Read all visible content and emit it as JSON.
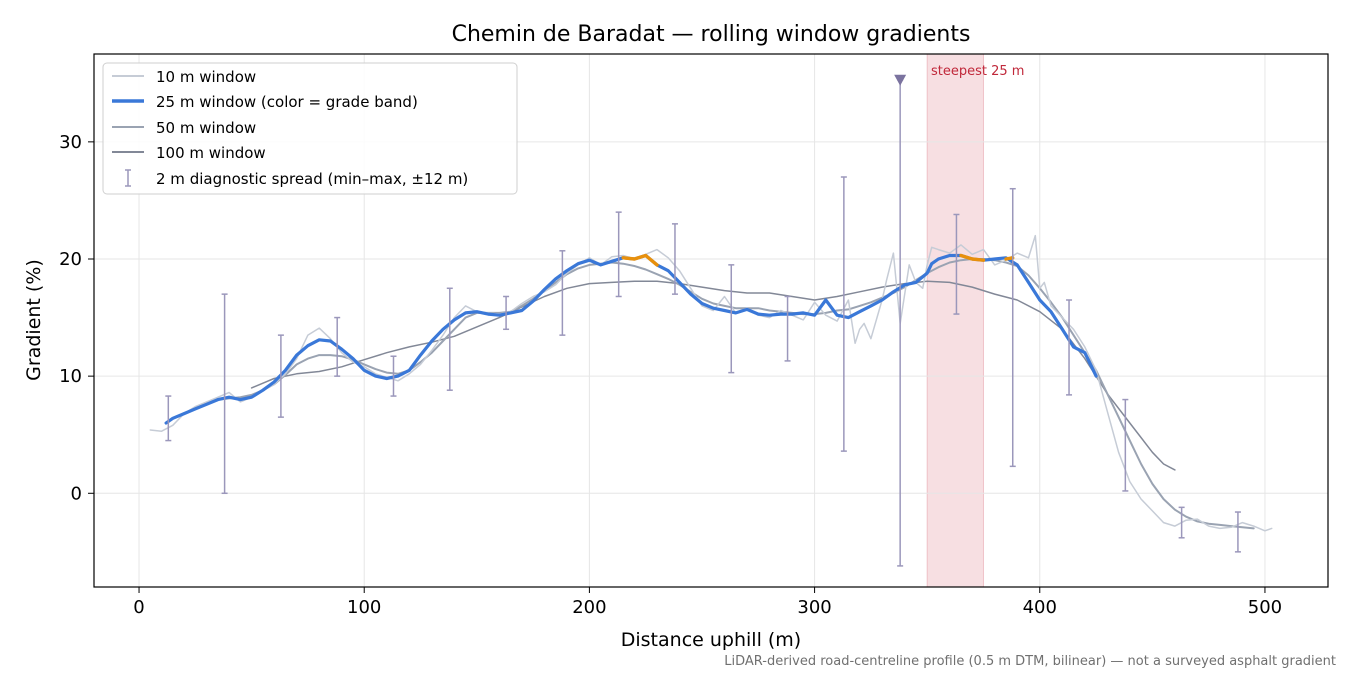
{
  "chart_data": {
    "type": "line",
    "title": "Chemin de Baradat — rolling window gradients",
    "xlabel": "Distance uphill (m)",
    "ylabel": "Gradient (%)",
    "xlim": [
      -20,
      528
    ],
    "ylim": [
      -8,
      37.5
    ],
    "xticks": [
      0,
      100,
      200,
      300,
      400,
      500
    ],
    "yticks": [
      0,
      10,
      20,
      30
    ],
    "grid": true,
    "legend_position": "top-left",
    "footnote": "LiDAR-derived road-centreline profile (0.5 m DTM, bilinear) — not a surveyed asphalt gradient",
    "highlight": {
      "label": "steepest 25 m",
      "x_range": [
        350,
        375
      ],
      "color": "#e8a4ad"
    },
    "outlier_marker": {
      "x": 338,
      "y": 35.3
    },
    "colors": {
      "w10": "#c6ccd6",
      "w25": "#3a78d8",
      "w25_steep": "#e8900c",
      "w50": "#9aa3b2",
      "w100": "#828897",
      "errorbar": "#9b97bb",
      "highlight_text": "#c0283a"
    },
    "series": [
      {
        "name": "10 m window",
        "key": "w10",
        "x": [
          5,
          10,
          15,
          20,
          25,
          30,
          35,
          40,
          45,
          50,
          55,
          60,
          65,
          70,
          75,
          80,
          85,
          90,
          95,
          100,
          105,
          110,
          115,
          120,
          125,
          130,
          135,
          140,
          145,
          150,
          155,
          160,
          165,
          170,
          175,
          180,
          185,
          190,
          195,
          200,
          205,
          210,
          215,
          220,
          225,
          230,
          235,
          240,
          245,
          250,
          255,
          260,
          265,
          270,
          275,
          280,
          285,
          290,
          295,
          300,
          305,
          310,
          315,
          318,
          320,
          322,
          325,
          330,
          332,
          335,
          338,
          340,
          342,
          345,
          348,
          350,
          352,
          355,
          360,
          365,
          370,
          375,
          380,
          385,
          390,
          395,
          398,
          400,
          402,
          405,
          410,
          415,
          420,
          425,
          430,
          435,
          440,
          445,
          450,
          455,
          460,
          465,
          470,
          475,
          480,
          485,
          490,
          495,
          500,
          503
        ],
        "y": [
          5.4,
          5.3,
          5.8,
          6.8,
          7.4,
          7.8,
          8.2,
          8.6,
          7.8,
          8.2,
          8.8,
          9.3,
          10.2,
          11.5,
          13.5,
          14.1,
          13.2,
          12.0,
          11.2,
          10.8,
          10.2,
          9.9,
          9.6,
          10.2,
          11.0,
          12.2,
          13.5,
          15.0,
          16.0,
          15.5,
          15.4,
          15.3,
          15.5,
          16.2,
          16.8,
          17.2,
          17.8,
          18.8,
          19.5,
          20.1,
          19.5,
          20.2,
          20.3,
          20.0,
          20.4,
          20.8,
          20.1,
          19.0,
          17.5,
          16.0,
          15.6,
          16.8,
          15.4,
          15.8,
          15.2,
          15.0,
          15.6,
          15.2,
          14.8,
          16.3,
          15.2,
          14.7,
          16.5,
          12.8,
          14.0,
          14.5,
          13.2,
          16.5,
          18.2,
          20.5,
          14.5,
          17.0,
          19.5,
          18.0,
          17.5,
          19.5,
          21.0,
          20.8,
          20.5,
          21.2,
          20.4,
          20.8,
          19.5,
          19.9,
          20.5,
          20.1,
          22.0,
          17.5,
          18.0,
          16.0,
          15.0,
          14.0,
          12.5,
          10.5,
          7.0,
          3.5,
          1.0,
          -0.5,
          -1.5,
          -2.5,
          -2.8,
          -2.3,
          -2.2,
          -2.8,
          -3.0,
          -2.9,
          -2.5,
          -2.8,
          -3.2,
          -3.0
        ]
      },
      {
        "name": "25 m window (color = grade band)",
        "key": "w25",
        "x": [
          12,
          15,
          20,
          25,
          30,
          35,
          40,
          45,
          50,
          55,
          60,
          65,
          70,
          75,
          80,
          85,
          90,
          95,
          100,
          105,
          110,
          115,
          120,
          125,
          130,
          135,
          140,
          145,
          150,
          155,
          160,
          165,
          170,
          175,
          180,
          185,
          190,
          195,
          200,
          205,
          210,
          215,
          220,
          225,
          230,
          235,
          240,
          245,
          250,
          255,
          260,
          265,
          270,
          275,
          280,
          285,
          290,
          295,
          300,
          305,
          310,
          315,
          320,
          325,
          330,
          335,
          340,
          345,
          350,
          352,
          355,
          360,
          365,
          370,
          375,
          380,
          385,
          390,
          395,
          400,
          405,
          410,
          415,
          420,
          425
        ],
        "y": [
          6.0,
          6.4,
          6.8,
          7.2,
          7.6,
          8.0,
          8.2,
          8.0,
          8.2,
          8.8,
          9.5,
          10.5,
          11.8,
          12.6,
          13.1,
          13.0,
          12.3,
          11.5,
          10.5,
          10.0,
          9.8,
          10.0,
          10.5,
          11.8,
          13.0,
          14.0,
          14.8,
          15.4,
          15.5,
          15.3,
          15.2,
          15.4,
          15.6,
          16.4,
          17.4,
          18.3,
          19.0,
          19.6,
          19.9,
          19.5,
          19.8,
          20.1,
          20.0,
          20.3,
          19.5,
          19.0,
          18.0,
          17.0,
          16.2,
          15.8,
          15.6,
          15.4,
          15.7,
          15.3,
          15.2,
          15.3,
          15.3,
          15.4,
          15.2,
          16.5,
          15.2,
          15.0,
          15.5,
          16.0,
          16.5,
          17.2,
          17.8,
          18.0,
          18.8,
          19.6,
          20.0,
          20.3,
          20.3,
          20.0,
          19.9,
          20.0,
          20.1,
          19.5,
          18.0,
          16.5,
          15.5,
          14.0,
          12.5,
          12.0,
          10.0
        ],
        "steep_segments": [
          [
            213,
            232
          ],
          [
            361,
            375
          ],
          [
            385,
            388
          ]
        ]
      },
      {
        "name": "50 m window",
        "key": "w50",
        "x": [
          25,
          30,
          35,
          40,
          45,
          50,
          55,
          60,
          65,
          70,
          75,
          80,
          85,
          90,
          95,
          100,
          105,
          110,
          115,
          120,
          125,
          130,
          135,
          140,
          145,
          150,
          155,
          160,
          165,
          170,
          175,
          180,
          185,
          190,
          195,
          200,
          205,
          210,
          215,
          220,
          225,
          230,
          235,
          240,
          245,
          250,
          255,
          260,
          265,
          270,
          275,
          280,
          285,
          290,
          295,
          300,
          305,
          310,
          315,
          320,
          325,
          330,
          335,
          340,
          345,
          350,
          355,
          360,
          365,
          370,
          375,
          380,
          385,
          390,
          395,
          400,
          405,
          410,
          415,
          420,
          425,
          430,
          435,
          440,
          445,
          450,
          455,
          460,
          465,
          470,
          475,
          480,
          485,
          490,
          495
        ],
        "y": [
          7.3,
          7.7,
          8.0,
          8.1,
          8.2,
          8.4,
          8.8,
          9.3,
          10.1,
          11.0,
          11.5,
          11.8,
          11.8,
          11.7,
          11.4,
          11.0,
          10.6,
          10.3,
          10.2,
          10.5,
          11.2,
          12.0,
          13.0,
          14.0,
          15.0,
          15.4,
          15.4,
          15.4,
          15.5,
          16.0,
          16.6,
          17.3,
          18.0,
          18.7,
          19.2,
          19.5,
          19.6,
          19.7,
          19.6,
          19.4,
          19.1,
          18.7,
          18.3,
          17.8,
          17.2,
          16.6,
          16.2,
          16.0,
          15.8,
          15.8,
          15.8,
          15.6,
          15.5,
          15.4,
          15.3,
          15.3,
          15.4,
          15.6,
          15.7,
          16.0,
          16.3,
          16.7,
          17.1,
          17.6,
          18.2,
          18.8,
          19.3,
          19.7,
          19.9,
          20.0,
          20.0,
          19.9,
          19.7,
          19.4,
          18.6,
          17.5,
          16.3,
          15.0,
          13.5,
          12.0,
          10.5,
          8.5,
          6.5,
          4.5,
          2.5,
          0.8,
          -0.5,
          -1.4,
          -2.0,
          -2.4,
          -2.6,
          -2.7,
          -2.8,
          -2.9,
          -3.0
        ]
      },
      {
        "name": "100 m window",
        "key": "w100",
        "x": [
          50,
          60,
          70,
          80,
          90,
          100,
          110,
          120,
          130,
          140,
          150,
          160,
          170,
          180,
          190,
          200,
          210,
          220,
          230,
          240,
          250,
          260,
          270,
          280,
          290,
          300,
          310,
          320,
          330,
          340,
          350,
          360,
          370,
          380,
          390,
          400,
          410,
          420,
          430,
          440,
          450,
          455,
          460
        ],
        "y": [
          9.0,
          9.8,
          10.2,
          10.4,
          10.8,
          11.4,
          12.0,
          12.5,
          12.9,
          13.4,
          14.2,
          15.0,
          15.9,
          16.8,
          17.5,
          17.9,
          18.0,
          18.1,
          18.1,
          17.9,
          17.6,
          17.3,
          17.1,
          17.1,
          16.8,
          16.5,
          16.8,
          17.2,
          17.6,
          17.9,
          18.1,
          18.0,
          17.6,
          17.0,
          16.5,
          15.5,
          14.0,
          11.5,
          8.5,
          6.0,
          3.5,
          2.5,
          2.0
        ]
      }
    ],
    "errorbars": {
      "name": "2 m diagnostic spread (min–max, ±12 m)",
      "points": [
        {
          "x": 13,
          "min": 4.5,
          "max": 8.3
        },
        {
          "x": 38,
          "min": 0.0,
          "max": 17.0
        },
        {
          "x": 63,
          "min": 6.5,
          "max": 13.5
        },
        {
          "x": 88,
          "min": 10.0,
          "max": 15.0
        },
        {
          "x": 113,
          "min": 8.3,
          "max": 11.7
        },
        {
          "x": 138,
          "min": 8.8,
          "max": 17.5
        },
        {
          "x": 163,
          "min": 14.0,
          "max": 16.8
        },
        {
          "x": 188,
          "min": 13.5,
          "max": 20.7
        },
        {
          "x": 213,
          "min": 16.8,
          "max": 24.0
        },
        {
          "x": 238,
          "min": 17.0,
          "max": 23.0
        },
        {
          "x": 263,
          "min": 10.3,
          "max": 19.5
        },
        {
          "x": 288,
          "min": 11.3,
          "max": 16.8
        },
        {
          "x": 313,
          "min": 3.6,
          "max": 27.0
        },
        {
          "x": 338,
          "min": -6.2,
          "max": 35.3
        },
        {
          "x": 363,
          "min": 15.3,
          "max": 23.8
        },
        {
          "x": 388,
          "min": 2.3,
          "max": 26.0
        },
        {
          "x": 413,
          "min": 8.4,
          "max": 16.5
        },
        {
          "x": 438,
          "min": 0.2,
          "max": 8.0
        },
        {
          "x": 463,
          "min": -3.8,
          "max": -1.2
        },
        {
          "x": 488,
          "min": -5.0,
          "max": -1.6
        }
      ]
    }
  }
}
